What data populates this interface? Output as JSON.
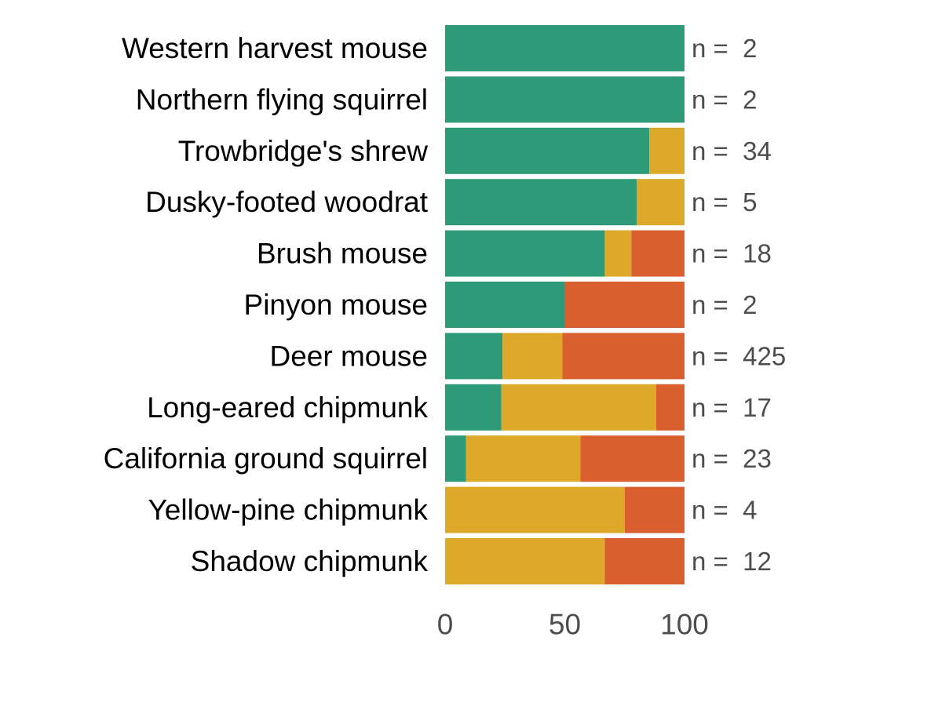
{
  "chart_data": {
    "type": "bar",
    "orientation": "horizontal",
    "stacked": true,
    "title": "",
    "xlabel": "",
    "ylabel": "",
    "xlim": [
      0,
      100
    ],
    "x_ticks": [
      "0",
      "50",
      "100"
    ],
    "x_tick_values": [
      0,
      50,
      100
    ],
    "grid": false,
    "legend": "none",
    "n_prefix": "n = ",
    "categories": [
      "Western harvest mouse",
      "Northern flying squirrel",
      "Trowbridge's shrew",
      "Dusky-footed woodrat",
      "Brush mouse",
      "Pinyon mouse",
      "Deer mouse",
      "Long-eared chipmunk",
      "California ground squirrel",
      "Yellow-pine chipmunk",
      "Shadow chipmunk"
    ],
    "n": [
      "2",
      "2",
      "34",
      "5",
      "18",
      "2",
      "425",
      "17",
      "23",
      "4",
      "12"
    ],
    "series": [
      {
        "color": "#2e9a78",
        "values": [
          100,
          100,
          85.3,
          80,
          66.7,
          50,
          24,
          23.5,
          8.7,
          0,
          0
        ]
      },
      {
        "color": "#dca92a",
        "values": [
          0,
          0,
          14.7,
          20,
          11.1,
          0,
          25,
          64.7,
          47.8,
          75,
          66.7
        ]
      },
      {
        "color": "#d95f2e",
        "values": [
          0,
          0,
          0,
          0,
          22.2,
          50,
          51,
          11.8,
          43.5,
          25,
          33.3
        ]
      }
    ]
  }
}
